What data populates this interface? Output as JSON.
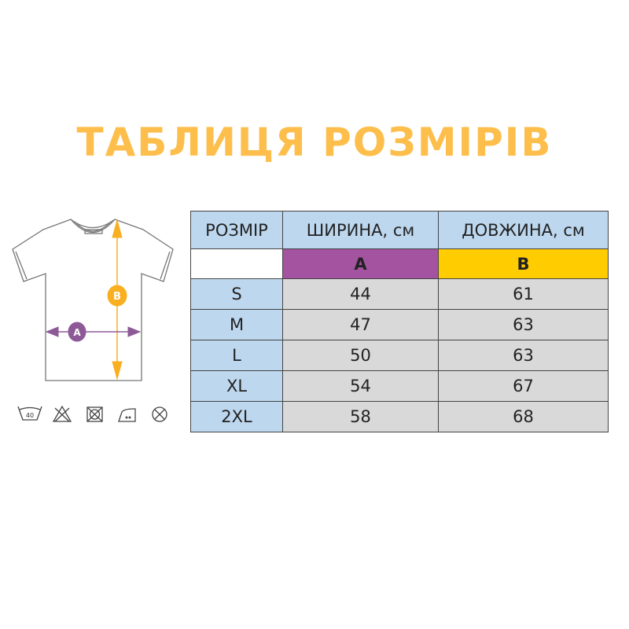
{
  "title": "ТАБЛИЦЯ РОЗМІРІВ",
  "colors": {
    "title": "#FDBE4B",
    "width_a": "#A353A0",
    "length_b": "#FFCC00",
    "header": "#BDD7EE",
    "cells": "#D9D9D9"
  },
  "diagram": {
    "marker_a": "A",
    "marker_b": "B",
    "care_icons": [
      "wash-40-icon",
      "no-bleach-icon",
      "no-tumble-dry-icon",
      "iron-low-icon",
      "no-dry-clean-icon"
    ],
    "wash_temp": "40"
  },
  "table": {
    "headers": [
      "РОЗМІР",
      "ШИРИНА, см",
      "ДОВЖИНА, см"
    ],
    "labels": [
      "",
      "A",
      "B"
    ],
    "rows": [
      [
        "S",
        "44",
        "61"
      ],
      [
        "M",
        "47",
        "63"
      ],
      [
        "L",
        "50",
        "63"
      ],
      [
        "XL",
        "54",
        "67"
      ],
      [
        "2XL",
        "58",
        "68"
      ]
    ]
  }
}
